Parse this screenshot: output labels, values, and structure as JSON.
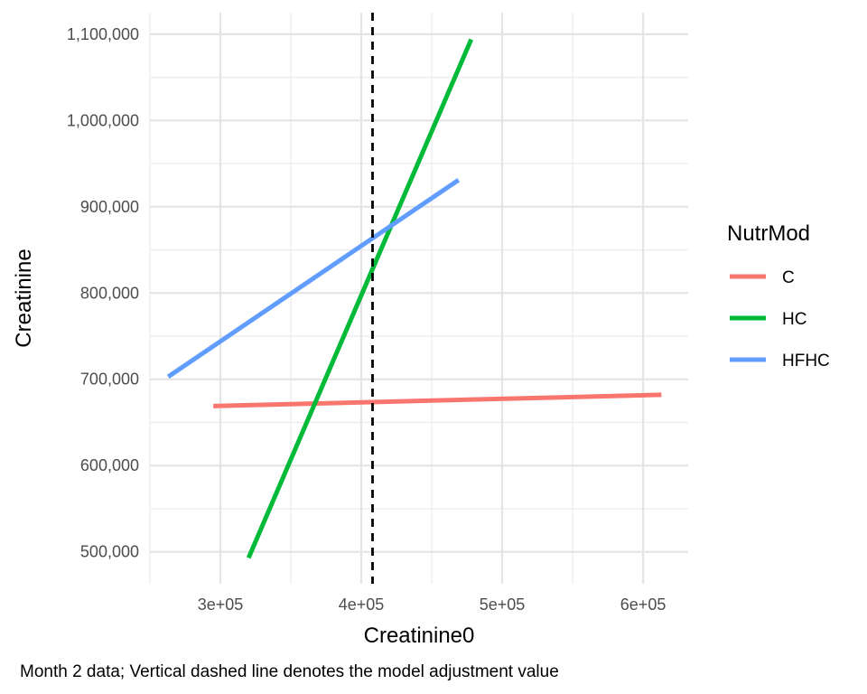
{
  "chart_data": {
    "type": "line",
    "xlabel": "Creatinine0",
    "ylabel": "Creatinine",
    "caption": "Month 2 data; Vertical dashed line denotes the model adjustment value",
    "xlim": [
      250000,
      632000
    ],
    "ylim": [
      463000,
      1125000
    ],
    "x_ticks": [
      300000,
      400000,
      500000,
      600000
    ],
    "x_tick_labels": [
      "3e+05",
      "4e+05",
      "5e+05",
      "6e+05"
    ],
    "y_ticks": [
      500000,
      600000,
      700000,
      800000,
      900000,
      1000000,
      1100000
    ],
    "y_tick_labels": [
      "500,000",
      "600,000",
      "700,000",
      "800,000",
      "900,000",
      "1,000,000",
      "1,100,000"
    ],
    "grid": true,
    "vline": {
      "x": 408000,
      "style": "dashed",
      "color": "#000000"
    },
    "legend": {
      "title": "NutrMod",
      "position": "right"
    },
    "series": [
      {
        "name": "C",
        "color": "#F8766D",
        "x": [
          295000,
          613000
        ],
        "y": [
          669000,
          682000
        ]
      },
      {
        "name": "HC",
        "color": "#00BA38",
        "x": [
          320000,
          478000
        ],
        "y": [
          493000,
          1094000
        ]
      },
      {
        "name": "HFHC",
        "color": "#619CFF",
        "x": [
          263000,
          469000
        ],
        "y": [
          703000,
          931000
        ]
      }
    ]
  }
}
